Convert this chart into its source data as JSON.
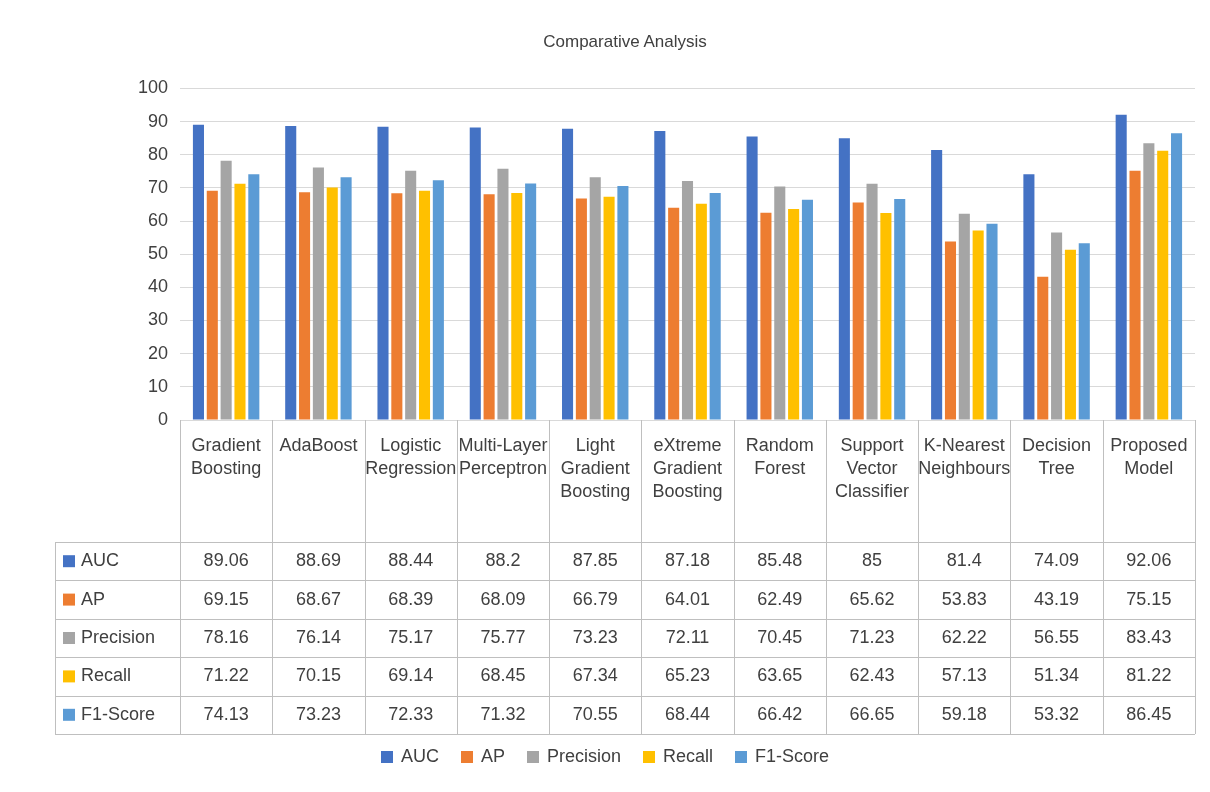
{
  "chart_data": {
    "type": "bar",
    "title": "Comparative Analysis",
    "categories": [
      "Gradient Boosting",
      "AdaBoost",
      "Logistic Regression",
      "Multi-Layer Perceptron",
      "Light Gradient Boosting",
      "eXtreme Gradient Boosting",
      "Random Forest",
      "Support Vector Classifier",
      "K-Nearest Neighbours",
      "Decision Tree",
      "Proposed Model"
    ],
    "series": [
      {
        "name": "AUC",
        "color": "#4472c4",
        "values": [
          89.06,
          88.69,
          88.44,
          88.2,
          87.85,
          87.18,
          85.48,
          85,
          81.4,
          74.09,
          92.06
        ]
      },
      {
        "name": "AP",
        "color": "#ed7d31",
        "values": [
          69.15,
          68.67,
          68.39,
          68.09,
          66.79,
          64.01,
          62.49,
          65.62,
          53.83,
          43.19,
          75.15
        ]
      },
      {
        "name": "Precision",
        "color": "#a5a5a5",
        "values": [
          78.16,
          76.14,
          75.17,
          75.77,
          73.23,
          72.11,
          70.45,
          71.23,
          62.22,
          56.55,
          83.43
        ]
      },
      {
        "name": "Recall",
        "color": "#ffc000",
        "values": [
          71.22,
          70.15,
          69.14,
          68.45,
          67.34,
          65.23,
          63.65,
          62.43,
          57.13,
          51.34,
          81.22
        ]
      },
      {
        "name": "F1-Score",
        "color": "#5b9bd5",
        "values": [
          74.13,
          73.23,
          72.33,
          71.32,
          70.55,
          68.44,
          66.42,
          66.65,
          59.18,
          53.32,
          86.45
        ]
      }
    ],
    "ylim": [
      0,
      100
    ],
    "yticks": [
      0,
      10,
      20,
      30,
      40,
      50,
      60,
      70,
      80,
      90,
      100
    ],
    "grid": "y",
    "legend": "bottom",
    "data_labels": true
  }
}
